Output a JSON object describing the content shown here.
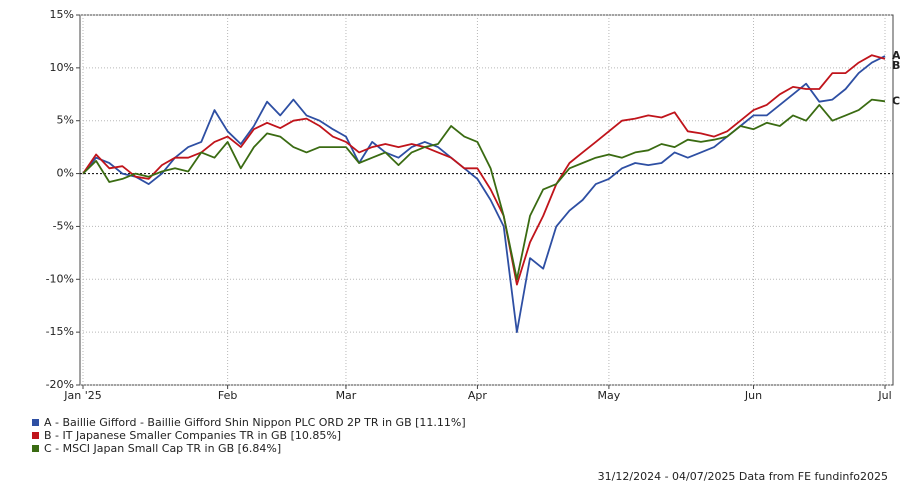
{
  "chart_data": {
    "type": "line",
    "categories": [
      "Jan '25",
      null,
      null,
      null,
      null,
      null,
      null,
      null,
      null,
      null,
      null,
      "Feb",
      null,
      null,
      null,
      null,
      null,
      null,
      null,
      null,
      "Mar",
      null,
      null,
      null,
      null,
      null,
      null,
      null,
      null,
      null,
      "Apr",
      null,
      null,
      null,
      null,
      null,
      null,
      null,
      null,
      null,
      "May",
      null,
      null,
      null,
      null,
      null,
      null,
      null,
      null,
      null,
      null,
      "Jun",
      null,
      null,
      null,
      null,
      null,
      null,
      null,
      null,
      null,
      "Jul"
    ],
    "series": [
      {
        "name": "A - Baillie Gifford - Baillie Gifford Shin Nippon PLC ORD 2P TR in GB [11.11%]",
        "label": "A",
        "color": "#2e4fa3",
        "values": [
          0,
          1.5,
          1,
          0,
          -0.3,
          -1,
          0,
          1.5,
          2.5,
          3,
          6,
          4,
          2.8,
          4.5,
          6.8,
          5.5,
          7,
          5.5,
          5,
          4.2,
          3.5,
          1,
          3,
          2,
          1.5,
          2.5,
          3,
          2.5,
          1.5,
          0.5,
          -0.5,
          -2.5,
          -5,
          -15,
          -8,
          -9,
          -5,
          -3.5,
          -2.5,
          -1,
          -0.5,
          0.5,
          1,
          0.8,
          1,
          2,
          1.5,
          2,
          2.5,
          3.5,
          4.5,
          5.5,
          5.5,
          6.5,
          7.5,
          8.5,
          6.8,
          7,
          8,
          9.5,
          10.5,
          11.11
        ]
      },
      {
        "name": "B - IT Japanese Smaller Companies TR in GB [10.85%]",
        "label": "B",
        "color": "#c0141b",
        "values": [
          0,
          1.8,
          0.5,
          0.7,
          -0.3,
          -0.5,
          0.8,
          1.5,
          1.5,
          2,
          3,
          3.5,
          2.5,
          4.2,
          4.8,
          4.3,
          5,
          5.2,
          4.5,
          3.5,
          3,
          2,
          2.5,
          2.8,
          2.5,
          2.8,
          2.5,
          2,
          1.5,
          0.5,
          0.5,
          -1.5,
          -4,
          -10.5,
          -6.5,
          -4,
          -1,
          1,
          2,
          3,
          4,
          5,
          5.2,
          5.5,
          5.3,
          5.8,
          4,
          3.8,
          3.5,
          4,
          5,
          6,
          6.5,
          7.5,
          8.2,
          8,
          8,
          9.5,
          9.5,
          10.5,
          11.2,
          10.85
        ]
      },
      {
        "name": "C - MSCI Japan Small Cap TR in GB [6.84%]",
        "label": "C",
        "color": "#3a6b12",
        "values": [
          0,
          1.2,
          -0.8,
          -0.5,
          0,
          -0.3,
          0.2,
          0.5,
          0.2,
          2,
          1.5,
          3,
          0.5,
          2.5,
          3.8,
          3.5,
          2.5,
          2,
          2.5,
          2.5,
          2.5,
          1,
          1.5,
          2,
          0.8,
          2,
          2.5,
          2.8,
          4.5,
          3.5,
          3,
          0.5,
          -4,
          -10,
          -4,
          -1.5,
          -1,
          0.5,
          1,
          1.5,
          1.8,
          1.5,
          2,
          2.2,
          2.8,
          2.5,
          3.2,
          3,
          3.2,
          3.5,
          4.5,
          4.2,
          4.8,
          4.5,
          5.5,
          5,
          6.5,
          5,
          5.5,
          6,
          7,
          6.84
        ]
      }
    ],
    "ylim": [
      -20,
      15
    ],
    "yticks": [
      {
        "value": -20,
        "label": "-20%"
      },
      {
        "value": -15,
        "label": "-15%"
      },
      {
        "value": -10,
        "label": "-10%"
      },
      {
        "value": -5,
        "label": "-5%"
      },
      {
        "value": 0,
        "label": "0%"
      },
      {
        "value": 5,
        "label": "5%"
      },
      {
        "value": 10,
        "label": "10%"
      },
      {
        "value": 15,
        "label": "15%"
      }
    ],
    "grid": true,
    "footer": "31/12/2024 - 04/07/2025 Data from FE fundinfo2025"
  }
}
